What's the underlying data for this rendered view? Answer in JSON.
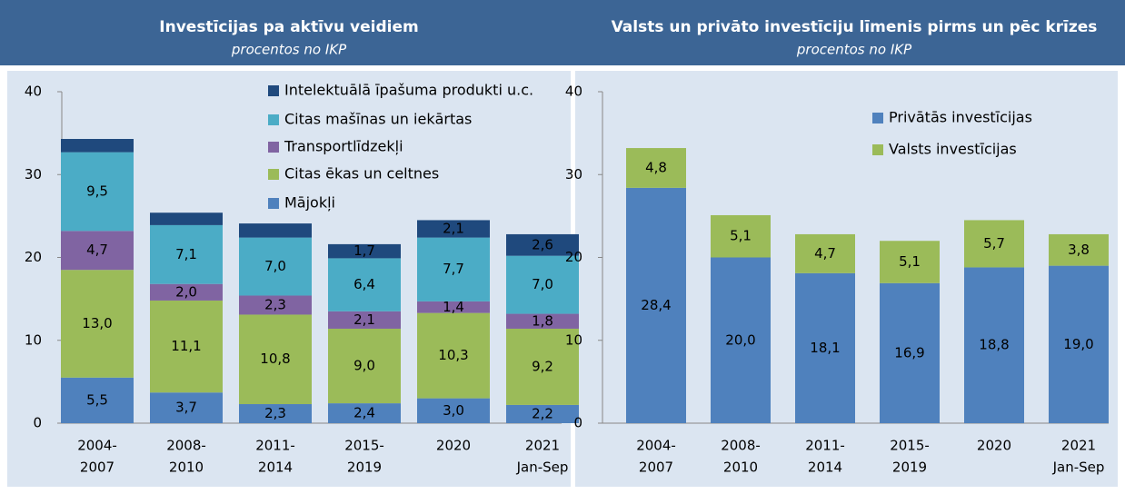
{
  "chart_data": [
    {
      "type": "stacked_bar",
      "title": "Investīcijas pa aktīvu veidiem",
      "subtitle": "procentos no IKP",
      "categories": [
        [
          "2004-",
          "2007"
        ],
        [
          "2008-",
          "2010"
        ],
        [
          "2011-",
          "2014"
        ],
        [
          "2015-",
          "2019"
        ],
        [
          "2020"
        ],
        [
          "2021",
          "Jan-Sep"
        ]
      ],
      "ylim": [
        0,
        40
      ],
      "yticks": [
        0,
        10,
        20,
        30,
        40
      ],
      "series": [
        {
          "name": "Mājokļi",
          "color": "#4f81bd",
          "values": [
            5.5,
            3.7,
            2.3,
            2.4,
            3.0,
            2.2
          ],
          "value_labels": [
            "5,5",
            "3,7",
            "2,3",
            "2,4",
            "3,0",
            "2,2"
          ]
        },
        {
          "name": "Citas ēkas un celtnes",
          "color": "#9bbb59",
          "values": [
            13.0,
            11.1,
            10.8,
            9.0,
            10.3,
            9.2
          ],
          "value_labels": [
            "13,0",
            "11,1",
            "10,8",
            "9,0",
            "10,3",
            "9,2"
          ]
        },
        {
          "name": "Transportlīdzekļi",
          "color": "#8064a2",
          "values": [
            4.7,
            2.0,
            2.3,
            2.1,
            1.4,
            1.8
          ],
          "value_labels": [
            "4,7",
            "2,0",
            "2,3",
            "2,1",
            "1,4",
            "1,8"
          ]
        },
        {
          "name": "Citas mašīnas un iekārtas",
          "color": "#4bacc6",
          "values": [
            9.5,
            7.1,
            7.0,
            6.4,
            7.7,
            7.0
          ],
          "value_labels": [
            "9,5",
            "7,1",
            "7,0",
            "6,4",
            "7,7",
            "7,0"
          ]
        },
        {
          "name": "Intelektuālā īpašuma produkti u.c.",
          "color": "#1f497d",
          "values": [
            1.6,
            1.5,
            1.7,
            1.7,
            2.1,
            2.6
          ],
          "value_labels": [
            null,
            null,
            null,
            "1,7",
            "2,1",
            "2,6"
          ]
        }
      ]
    },
    {
      "type": "stacked_bar",
      "title": "Valsts un privāto investīciju līmenis pirms un pēc krīzes",
      "subtitle": "procentos no IKP",
      "categories": [
        [
          "2004-",
          "2007"
        ],
        [
          "2008-",
          "2010"
        ],
        [
          "2011-",
          "2014"
        ],
        [
          "2015-",
          "2019"
        ],
        [
          "2020"
        ],
        [
          "2021",
          "Jan-Sep"
        ]
      ],
      "ylim": [
        0,
        40
      ],
      "yticks": [
        0,
        10,
        20,
        30,
        40
      ],
      "series": [
        {
          "name": "Privātās investīcijas",
          "color": "#4f81bd",
          "values": [
            28.4,
            20.0,
            18.1,
            16.9,
            18.8,
            19.0
          ],
          "value_labels": [
            "28,4",
            "20,0",
            "18,1",
            "16,9",
            "18,8",
            "19,0"
          ]
        },
        {
          "name": "Valsts investīcijas",
          "color": "#9bbb59",
          "values": [
            4.8,
            5.1,
            4.7,
            5.1,
            5.7,
            3.8
          ],
          "value_labels": [
            "4,8",
            "5,1",
            "4,7",
            "5,1",
            "5,7",
            "3,8"
          ]
        }
      ]
    }
  ]
}
